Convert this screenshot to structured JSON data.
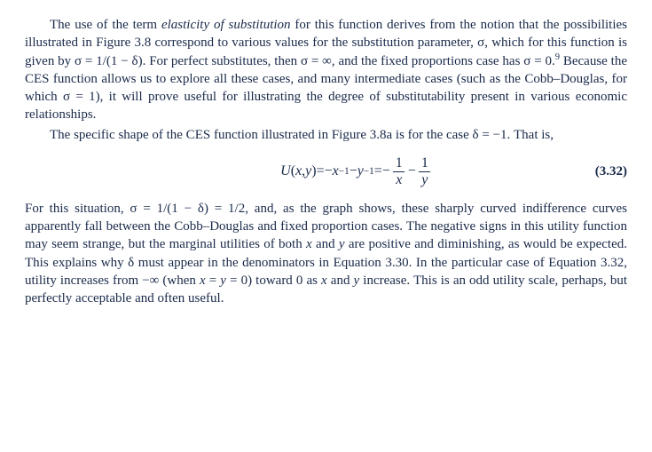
{
  "text_color": "#1a2a4a",
  "background_color": "#ffffff",
  "font_family": "Georgia, 'Times New Roman', serif",
  "para1": {
    "seg1": "The use of the term ",
    "seg2_ital": "elasticity of substitution ",
    "seg3": "for this function derives from the notion that the possibilities illustrated in Figure 3.8 correspond to various values for the substitution parameter, σ, which for this function is given by σ = 1/(1 − δ). For perfect substitutes, then σ = ∞, and the fixed proportions case has σ = 0.",
    "seg4_sup": "9",
    "seg5": " Because the CES function allows us to explore all these cases, and many intermediate cases (such as the Cobb–Douglas, for which σ = 1), it will prove useful for illustrating the degree of substitutability present in various economic relationships."
  },
  "para2": "The specific shape of the CES function illustrated in Figure 3.8a is for the case δ = −1. That is,",
  "equation": {
    "lhs_U": "U",
    "lhs_args_open": "(",
    "lhs_x": "x",
    "lhs_comma": ", ",
    "lhs_y": "y",
    "lhs_args_close": ") ",
    "eq1": "= ",
    "t_neg": "−",
    "t_x": "x",
    "t_exp": "−1",
    "t_min": " − ",
    "t_y": "y",
    "eq2": " = ",
    "f1_neg": "−",
    "f1_num": "1",
    "f1_den": "x",
    "mid_min": " − ",
    "f2_num": "1",
    "f2_den": "y",
    "number": "(3.32)"
  },
  "para3": {
    "seg1": "For this situation, σ = 1/(1 − δ) = 1/2, and, as the graph shows, these sharply curved indifference curves apparently fall between the Cobb–Douglas and fixed proportion cases. The negative signs in this utility function may seem strange, but the marginal utilities of both ",
    "seg2_ital": "x",
    "seg3": " and ",
    "seg4_ital": "y",
    "seg5": " are positive and diminishing, as would be expected. This explains why δ must appear in the denominators in Equation 3.30. In the particular case of Equation 3.32, utility increases from −∞ (when ",
    "seg6_ital": "x",
    "seg7": " = ",
    "seg8_ital": "y",
    "seg9": " = 0) toward 0 as ",
    "seg10_ital": "x",
    "seg11": " and ",
    "seg12_ital": "y",
    "seg13": " increase. This is an odd utility scale, perhaps, but perfectly acceptable and often useful."
  }
}
